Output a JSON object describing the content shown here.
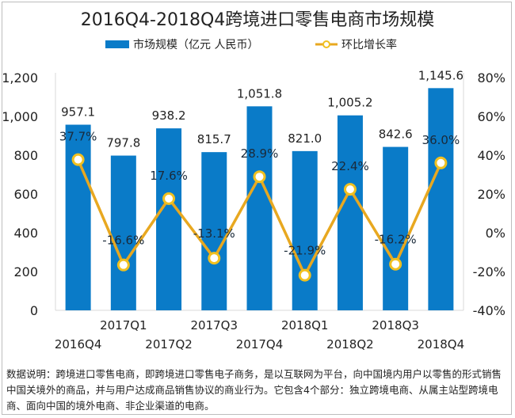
{
  "title": "2016Q4-2018Q4跨境进口零售电商市场规模",
  "legend": {
    "bar_label": "市场规模（亿元 人民币）",
    "line_label": "环比增长率"
  },
  "colors": {
    "bar": "#0a7bc8",
    "line": "#e8a820",
    "marker_fill": "#ffffff",
    "marker_stroke": "#f0c020",
    "axis": "#d9d9d9"
  },
  "chart_data": {
    "type": "bar+line",
    "title": "2016Q4-2018Q4跨境进口零售电商市场规模",
    "categories": [
      "2016Q4",
      "2017Q1",
      "2017Q2",
      "2017Q3",
      "2017Q4",
      "2018Q1",
      "2018Q2",
      "2018Q3",
      "2018Q4"
    ],
    "series": [
      {
        "name": "市场规模（亿元 人民币）",
        "type": "bar",
        "axis": "left",
        "values": [
          957.1,
          797.8,
          938.2,
          815.7,
          1051.8,
          821.0,
          1005.2,
          842.6,
          1145.6
        ],
        "labels": [
          "957.1",
          "797.8",
          "938.2",
          "815.7",
          "1,051.8",
          "821.0",
          "1,005.2",
          "842.6",
          "1,145.6"
        ]
      },
      {
        "name": "环比增长率",
        "type": "line",
        "axis": "right",
        "values": [
          37.7,
          -16.6,
          17.6,
          -13.1,
          28.9,
          -21.9,
          22.4,
          -16.2,
          36.0
        ],
        "labels": [
          "37.7%",
          "-16.6%",
          "17.6%",
          "-13.1%",
          "28.9%",
          "-21.9%",
          "22.4%",
          "-16.2%",
          "36.0%"
        ]
      }
    ],
    "left_axis": {
      "ylim": [
        0,
        1200
      ],
      "ticks": [
        "0",
        "200",
        "400",
        "600",
        "800",
        "1,000",
        "1,200"
      ]
    },
    "right_axis": {
      "ylim": [
        -40,
        80
      ],
      "ticks": [
        "-40%",
        "-20%",
        "0%",
        "20%",
        "40%",
        "60%",
        "80%"
      ]
    },
    "legend_position": "top",
    "grid": false
  },
  "note": "数据说明：跨境进口零售电商，即跨境进口零售电子商务，是以互联网为平台，向中国境内用户以零售的形式销售中国关境外的商品，并与用户达成商品销售协议的商业行为。它包含4个部分：独立跨境电商、从属主站型跨境电商、面向中国的境外电商、非企业渠道的电商。"
}
